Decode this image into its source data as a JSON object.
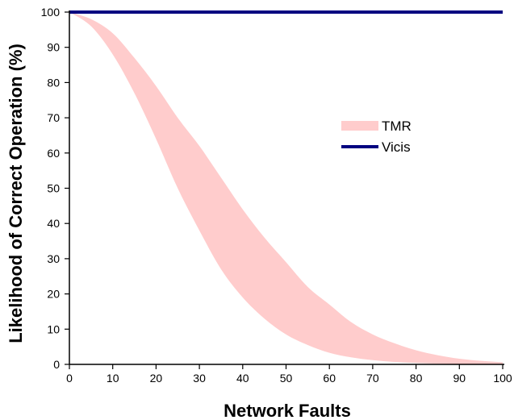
{
  "chart_data": {
    "type": "area",
    "xlabel": "Network Faults",
    "ylabel": "Likelihood of Correct Operation (%)",
    "xlim": [
      0,
      100
    ],
    "ylim": [
      0,
      100
    ],
    "xticks": [
      0,
      10,
      20,
      30,
      40,
      50,
      60,
      70,
      80,
      90,
      100
    ],
    "yticks": [
      0,
      10,
      20,
      30,
      40,
      50,
      60,
      70,
      80,
      90,
      100
    ],
    "x": [
      0,
      5,
      10,
      15,
      20,
      25,
      30,
      35,
      40,
      45,
      50,
      55,
      60,
      65,
      70,
      75,
      80,
      85,
      90,
      95,
      100
    ],
    "series": [
      {
        "name": "TMR",
        "kind": "band",
        "color": "#ffcccc",
        "upper": [
          100,
          98,
          94,
          87,
          79,
          70,
          62,
          53,
          44,
          36,
          29,
          22,
          17,
          12,
          8.5,
          6,
          4,
          2.6,
          1.6,
          1.0,
          0.6
        ],
        "lower": [
          100,
          96,
          88,
          77,
          64,
          50,
          38,
          27,
          19,
          13,
          8.5,
          5.5,
          3.3,
          2.0,
          1.2,
          0.7,
          0.4,
          0.2,
          0.1,
          0.05,
          0.02
        ]
      },
      {
        "name": "Vicis",
        "kind": "line",
        "color": "#000080",
        "values": [
          100,
          100,
          100,
          100,
          100,
          100,
          100,
          100,
          100,
          100,
          100,
          100,
          100,
          100,
          100,
          100,
          100,
          100,
          100,
          100,
          100
        ]
      }
    ],
    "legend": {
      "placement": "center-right"
    },
    "grid": false
  }
}
